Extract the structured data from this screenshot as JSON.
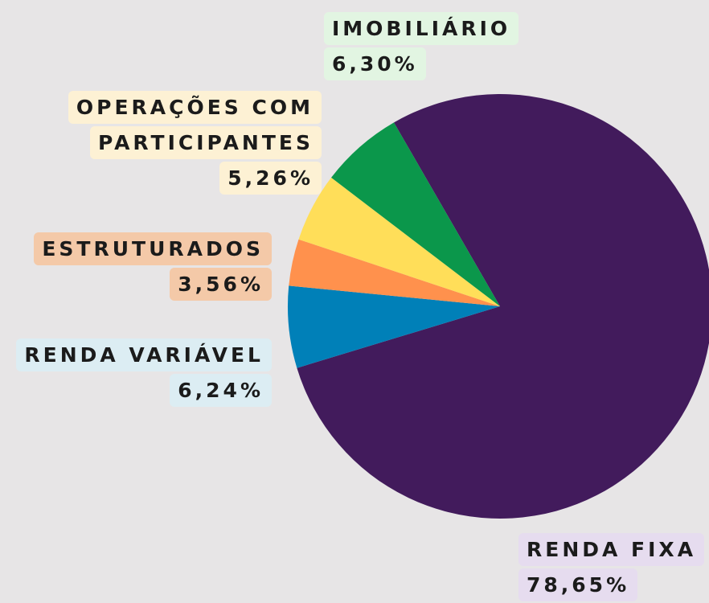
{
  "chart_data": {
    "type": "pie",
    "categories": [
      "RENDA FIXA",
      "RENDA VARIÁVEL",
      "ESTRUTURADOS",
      "OPERAÇÕES COM PARTICIPANTES",
      "IMOBILIÁRIO"
    ],
    "values": [
      78.65,
      6.24,
      3.56,
      5.26,
      6.3
    ],
    "value_labels": [
      "78,65%",
      "6,24%",
      "3,56%",
      "5,26%",
      "6,30%"
    ],
    "colors": [
      "#421b5c",
      "#0080b8",
      "#ff914d",
      "#ffde59",
      "#0b974b"
    ]
  }
}
